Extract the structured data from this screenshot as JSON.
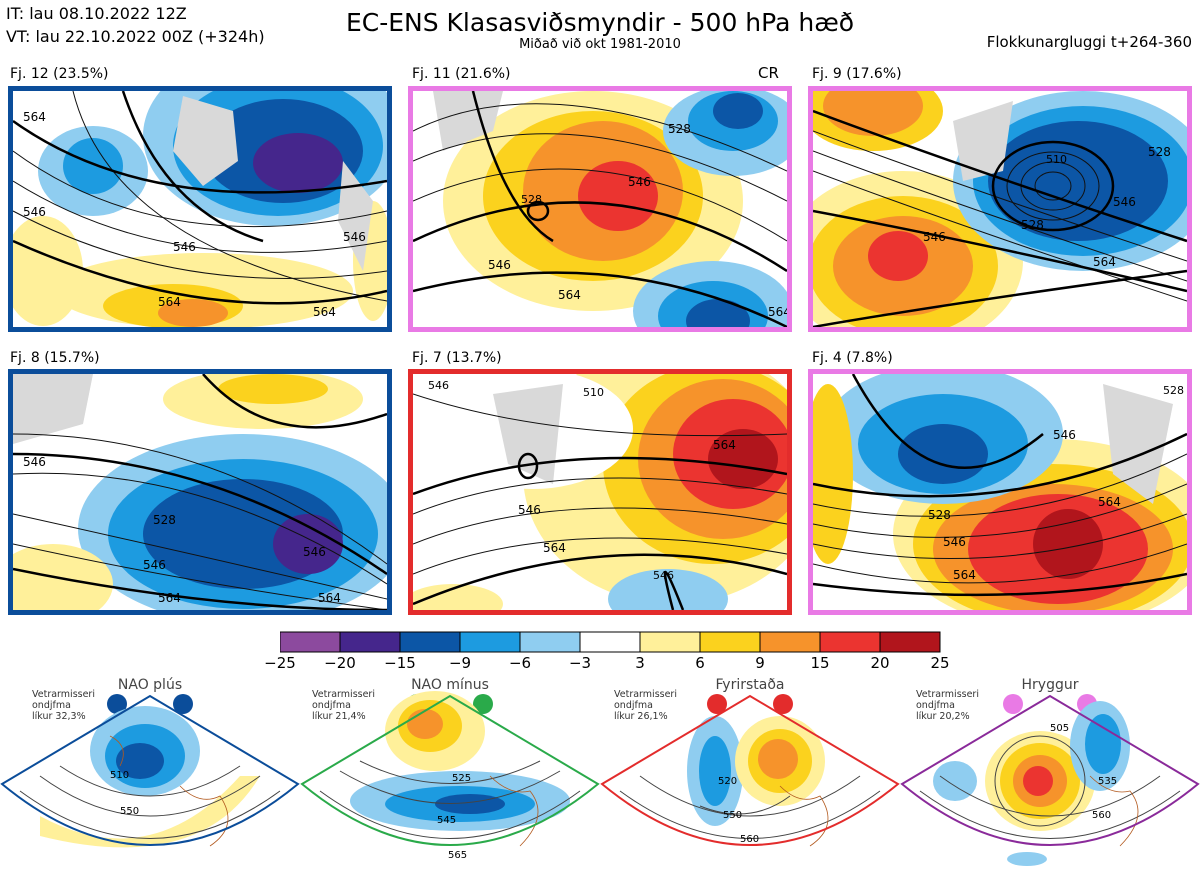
{
  "header": {
    "it": "IT: lau 08.10.2022 12Z",
    "vt": "VT: lau 22.10.2022 00Z  (+324h)",
    "title": "EC-ENS Klasasviðsmyndir - 500 hPa hæð",
    "subtitle": "Miðað við okt 1981-2010",
    "window": "Flokkunargluggi t+264-360"
  },
  "panels": [
    {
      "label": "Fj. 12 (23.5%)",
      "frame": "#0b4d9a",
      "contours": [
        "564",
        "546",
        "546",
        "564",
        "546",
        "564"
      ]
    },
    {
      "label": "Fj. 11 (21.6%)",
      "frame": "#e97ae5",
      "extra": "CR",
      "contours": [
        "528",
        "546",
        "528",
        "546",
        "564",
        "564"
      ]
    },
    {
      "label": "Fj. 9 (17.6%)",
      "frame": "#e97ae5",
      "contours": [
        "510",
        "528",
        "546",
        "564",
        "546",
        "528"
      ]
    },
    {
      "label": "Fj. 8 (15.7%)",
      "frame": "#0b4d9a",
      "contours": [
        "546",
        "528",
        "546",
        "546",
        "564",
        "564"
      ]
    },
    {
      "label": "Fj. 7 (13.7%)",
      "frame": "#e32c2c",
      "contours": [
        "546",
        "510",
        "564",
        "546",
        "564",
        "546"
      ]
    },
    {
      "label": "Fj. 4 (7.8%)",
      "frame": "#e97ae5",
      "contours": [
        "546",
        "528",
        "546",
        "564",
        "564",
        "528"
      ]
    }
  ],
  "colorbar": {
    "ticks": [
      "−25",
      "−20",
      "−15",
      "−9",
      "−6",
      "−3",
      "3",
      "6",
      "9",
      "15",
      "20",
      "25"
    ],
    "colors": [
      "#8c4a9e",
      "#45268c",
      "#0c56a6",
      "#1d9be0",
      "#8fcdf0",
      "#ffffff",
      "#fff09a",
      "#fbd21e",
      "#f6932b",
      "#eb3430",
      "#b1151c"
    ]
  },
  "regimes": [
    {
      "name": "NAO plús",
      "info1": "Vetrarmisseri",
      "info2": "ondjfma",
      "info3": "líkur 32,3%",
      "color": "#0b4d9a",
      "contours": [
        "510",
        "550"
      ]
    },
    {
      "name": "NAO mínus",
      "info1": "Vetrarmisseri",
      "info2": "ondjfma",
      "info3": "líkur 21,4%",
      "color": "#2aaa4a",
      "contours": [
        "525",
        "545",
        "565"
      ]
    },
    {
      "name": "Fyrirstaða",
      "info1": "Vetrarmisseri",
      "info2": "ondjfma",
      "info3": "líkur 26,1%",
      "color": "#e32c2c",
      "contours": [
        "520",
        "550",
        "560"
      ]
    },
    {
      "name": "Hryggur",
      "info1": "Vetrarmisseri",
      "info2": "ondjfma",
      "info3": "líkur 20,2%",
      "color": "#8a2a9a",
      "contours": [
        "505",
        "535",
        "560"
      ]
    }
  ]
}
